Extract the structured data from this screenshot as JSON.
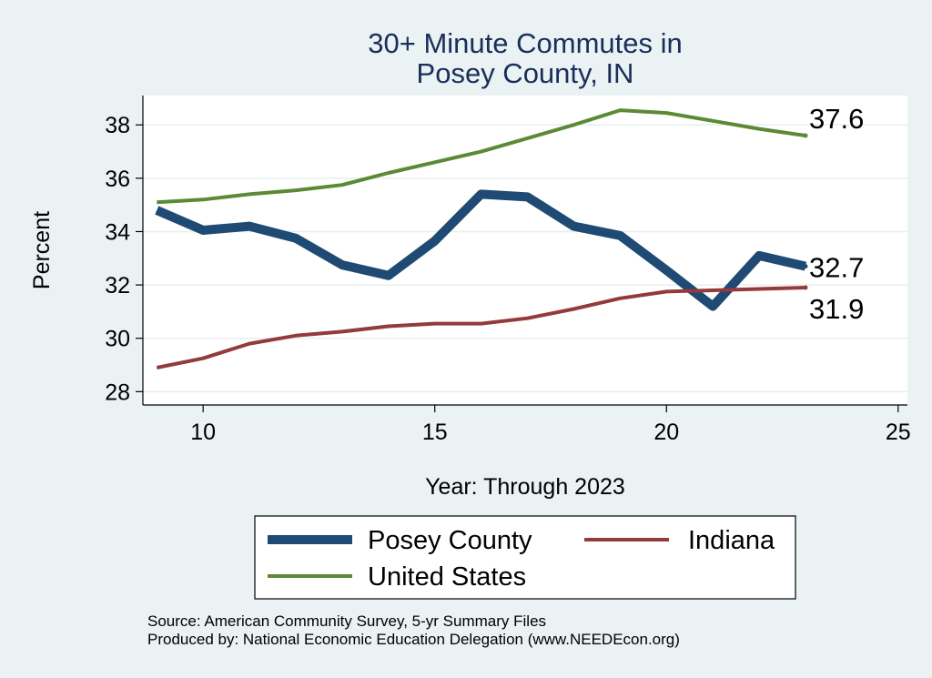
{
  "chart_data": {
    "type": "line",
    "title": [
      "30+ Minute Commutes in",
      "Posey County, IN"
    ],
    "xlabel": "Year: Through 2023",
    "ylabel": "Percent",
    "xlim": [
      8.7,
      25.2
    ],
    "ylim": [
      27.5,
      39.1
    ],
    "xticks": [
      10,
      15,
      20,
      25
    ],
    "yticks": [
      28,
      30,
      32,
      34,
      36,
      38
    ],
    "grid": true,
    "series": [
      {
        "name": "United States",
        "color": "#5b8a36",
        "width": 4,
        "x": [
          9,
          10,
          11,
          12,
          13,
          14,
          15,
          16,
          17,
          18,
          19,
          20,
          21,
          22,
          23
        ],
        "y": [
          35.1,
          35.2,
          35.4,
          35.55,
          35.75,
          36.2,
          36.6,
          37.0,
          37.5,
          38.0,
          38.55,
          38.45,
          38.15,
          37.85,
          37.6
        ],
        "end_label": "37.6"
      },
      {
        "name": "Posey County",
        "color": "#1e4a73",
        "width": 10,
        "x": [
          9,
          10,
          11,
          12,
          13,
          14,
          15,
          16,
          17,
          18,
          19,
          20,
          21,
          22,
          23
        ],
        "y": [
          34.8,
          34.05,
          34.2,
          33.75,
          32.75,
          32.35,
          33.65,
          35.4,
          35.3,
          34.2,
          33.85,
          32.55,
          31.2,
          33.1,
          32.7
        ],
        "end_label": "32.7"
      },
      {
        "name": "Indiana",
        "color": "#943a3a",
        "width": 4,
        "x": [
          9,
          10,
          11,
          12,
          13,
          14,
          15,
          16,
          17,
          18,
          19,
          20,
          21,
          22,
          23
        ],
        "y": [
          28.9,
          29.25,
          29.8,
          30.1,
          30.25,
          30.45,
          30.55,
          30.55,
          30.75,
          31.1,
          31.5,
          31.75,
          31.8,
          31.85,
          31.9
        ],
        "end_label": "31.9"
      }
    ],
    "legend": {
      "placement": "bottom",
      "entries": [
        "Posey County",
        "Indiana",
        "United States"
      ]
    },
    "notes": [
      "Source: American Community Survey, 5-yr Summary Files",
      "Produced by: National Economic Education Delegation (www.NEEDEcon.org)"
    ]
  }
}
